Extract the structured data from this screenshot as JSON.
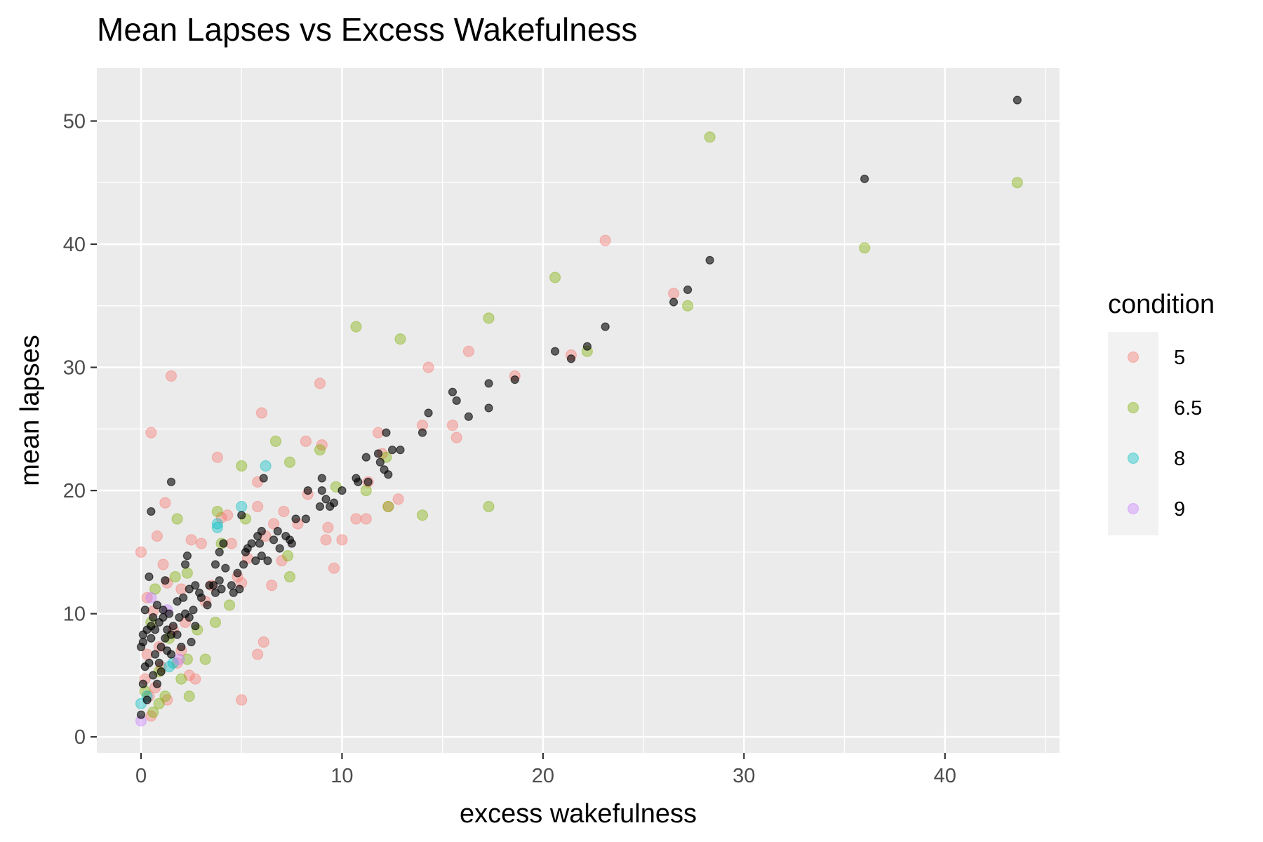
{
  "chart_data": {
    "type": "scatter",
    "title": "Mean Lapses vs Excess Wakefulness",
    "xlabel": "excess wakefulness",
    "ylabel": "mean lapses",
    "xlim": [
      -2.2,
      45.7
    ],
    "ylim": [
      -1.3,
      54.3
    ],
    "x_ticks": [
      0,
      10,
      20,
      30,
      40
    ],
    "y_ticks": [
      0,
      10,
      20,
      30,
      40,
      50
    ],
    "x_tick_labels": [
      "0",
      "10",
      "20",
      "30",
      "40"
    ],
    "y_tick_labels": [
      "0",
      "10",
      "20",
      "30",
      "40",
      "50"
    ],
    "grid": true,
    "legend": {
      "title": "condition",
      "position": "right",
      "entries": [
        {
          "label": "5",
          "color": "#F8766D"
        },
        {
          "label": "6.5",
          "color": "#7CAE00"
        },
        {
          "label": "8",
          "color": "#00BFC4"
        },
        {
          "label": "9",
          "color": "#C77CFF"
        }
      ]
    },
    "series": [
      {
        "name": "5",
        "color": "#F8766D",
        "points": [
          [
            0,
            15.0
          ],
          [
            0.5,
            24.7
          ],
          [
            0.8,
            16.3
          ],
          [
            1.2,
            19.0
          ],
          [
            1.5,
            29.3
          ],
          [
            1.1,
            14.0
          ],
          [
            0.3,
            11.3
          ],
          [
            0.6,
            10.2
          ],
          [
            1.3,
            12.5
          ],
          [
            2.0,
            12.0
          ],
          [
            2.5,
            16.0
          ],
          [
            3.0,
            15.7
          ],
          [
            3.5,
            12.3
          ],
          [
            3.8,
            22.7
          ],
          [
            4.0,
            17.8
          ],
          [
            4.3,
            18.0
          ],
          [
            4.5,
            15.7
          ],
          [
            4.8,
            13.0
          ],
          [
            5.0,
            12.5
          ],
          [
            5.3,
            14.5
          ],
          [
            5.8,
            20.7
          ],
          [
            6.0,
            26.3
          ],
          [
            5.8,
            18.7
          ],
          [
            6.2,
            16.3
          ],
          [
            6.5,
            12.3
          ],
          [
            6.6,
            17.3
          ],
          [
            7.0,
            14.3
          ],
          [
            7.1,
            18.3
          ],
          [
            7.8,
            17.3
          ],
          [
            8.2,
            24.0
          ],
          [
            8.3,
            19.7
          ],
          [
            8.9,
            28.7
          ],
          [
            9.0,
            23.7
          ],
          [
            9.2,
            16.0
          ],
          [
            9.3,
            17.0
          ],
          [
            9.6,
            13.7
          ],
          [
            10.0,
            16.0
          ],
          [
            10.7,
            17.7
          ],
          [
            11.2,
            17.7
          ],
          [
            11.3,
            20.7
          ],
          [
            11.8,
            24.7
          ],
          [
            12.0,
            23.0
          ],
          [
            12.3,
            18.7
          ],
          [
            12.8,
            19.3
          ],
          [
            14.0,
            25.3
          ],
          [
            14.3,
            30.0
          ],
          [
            15.5,
            25.3
          ],
          [
            15.7,
            24.3
          ],
          [
            16.3,
            31.3
          ],
          [
            18.6,
            29.3
          ],
          [
            21.4,
            31.0
          ],
          [
            23.1,
            40.3
          ],
          [
            26.5,
            36.0
          ],
          [
            0.2,
            4.7
          ],
          [
            0.4,
            3.3
          ],
          [
            0.7,
            4.0
          ],
          [
            1.0,
            5.7
          ],
          [
            1.3,
            3.0
          ],
          [
            2.0,
            7.0
          ],
          [
            2.4,
            5.0
          ],
          [
            2.7,
            4.7
          ],
          [
            5.0,
            3.0
          ],
          [
            5.8,
            6.7
          ],
          [
            6.1,
            7.7
          ],
          [
            0.3,
            6.7
          ],
          [
            0.9,
            7.3
          ],
          [
            1.6,
            8.7
          ],
          [
            2.2,
            9.3
          ],
          [
            3.2,
            11.0
          ],
          [
            0.5,
            1.7
          ],
          [
            1.8,
            6.0
          ]
        ]
      },
      {
        "name": "6.5",
        "color": "#7CAE00",
        "points": [
          [
            0.2,
            3.7
          ],
          [
            0.6,
            2.0
          ],
          [
            0.9,
            2.7
          ],
          [
            1.2,
            3.3
          ],
          [
            2.4,
            3.3
          ],
          [
            2.0,
            4.7
          ],
          [
            2.3,
            6.3
          ],
          [
            3.2,
            6.3
          ],
          [
            0.5,
            9.3
          ],
          [
            0.7,
            12.0
          ],
          [
            1.7,
            13.0
          ],
          [
            1.8,
            17.7
          ],
          [
            2.3,
            13.3
          ],
          [
            2.8,
            8.7
          ],
          [
            3.7,
            9.3
          ],
          [
            3.8,
            18.3
          ],
          [
            4.0,
            15.7
          ],
          [
            4.4,
            10.7
          ],
          [
            5.0,
            22.0
          ],
          [
            5.2,
            17.7
          ],
          [
            6.7,
            24.0
          ],
          [
            7.3,
            14.7
          ],
          [
            7.4,
            22.3
          ],
          [
            7.4,
            13.0
          ],
          [
            8.9,
            23.3
          ],
          [
            9.7,
            20.3
          ],
          [
            10.7,
            33.3
          ],
          [
            11.2,
            20.0
          ],
          [
            12.2,
            22.7
          ],
          [
            12.3,
            18.7
          ],
          [
            12.9,
            32.3
          ],
          [
            14.0,
            18.0
          ],
          [
            17.3,
            34.0
          ],
          [
            17.3,
            18.7
          ],
          [
            20.6,
            37.3
          ],
          [
            22.2,
            31.3
          ],
          [
            27.2,
            35.0
          ],
          [
            28.3,
            48.7
          ],
          [
            36.0,
            39.7
          ],
          [
            43.6,
            45.0
          ],
          [
            1.4,
            8.0
          ],
          [
            0.9,
            5.3
          ]
        ]
      },
      {
        "name": "8",
        "color": "#00BFC4",
        "points": [
          [
            0,
            2.7
          ],
          [
            0.3,
            3.3
          ],
          [
            1.4,
            5.7
          ],
          [
            1.6,
            6.0
          ],
          [
            3.8,
            17.0
          ],
          [
            3.8,
            17.3
          ],
          [
            5.0,
            18.7
          ],
          [
            6.2,
            22.0
          ]
        ]
      },
      {
        "name": "9",
        "color": "#C77CFF",
        "points": [
          [
            0,
            1.3
          ],
          [
            0.5,
            11.3
          ],
          [
            1.3,
            10.3
          ],
          [
            1.9,
            6.3
          ]
        ]
      },
      {
        "name": "",
        "color": "#000000",
        "points": [
          [
            0,
            1.8
          ],
          [
            0.3,
            3.0
          ],
          [
            0.1,
            4.3
          ],
          [
            0.6,
            5.0
          ],
          [
            0.4,
            6.0
          ],
          [
            0.7,
            6.7
          ],
          [
            0.9,
            6.0
          ],
          [
            1.0,
            7.3
          ],
          [
            1.2,
            8.0
          ],
          [
            1.5,
            8.3
          ],
          [
            0,
            7.3
          ],
          [
            0.1,
            7.7
          ],
          [
            0.1,
            8.3
          ],
          [
            0.3,
            8.7
          ],
          [
            0.5,
            8.0
          ],
          [
            0.7,
            8.7
          ],
          [
            0.9,
            9.3
          ],
          [
            1.1,
            9.7
          ],
          [
            1.3,
            8.7
          ],
          [
            1.6,
            9.0
          ],
          [
            1.9,
            9.7
          ],
          [
            2.2,
            10.0
          ],
          [
            2.4,
            9.7
          ],
          [
            2.7,
            9.0
          ],
          [
            0.2,
            10.3
          ],
          [
            0.5,
            9.0
          ],
          [
            0.8,
            10.7
          ],
          [
            1.1,
            10.3
          ],
          [
            1.4,
            10.0
          ],
          [
            1.8,
            11.0
          ],
          [
            2.1,
            11.3
          ],
          [
            2.4,
            12.0
          ],
          [
            2.7,
            12.3
          ],
          [
            3.0,
            11.3
          ],
          [
            3.3,
            10.7
          ],
          [
            3.6,
            12.3
          ],
          [
            3.9,
            12.7
          ],
          [
            4.2,
            13.7
          ],
          [
            4.5,
            12.3
          ],
          [
            4.8,
            13.3
          ],
          [
            0.4,
            13.0
          ],
          [
            1.2,
            12.7
          ],
          [
            2.2,
            14.0
          ],
          [
            2.3,
            14.7
          ],
          [
            3.7,
            14.0
          ],
          [
            3.9,
            15.0
          ],
          [
            4.1,
            15.7
          ],
          [
            5.2,
            15.0
          ],
          [
            5.5,
            15.7
          ],
          [
            5.8,
            16.3
          ],
          [
            6.0,
            16.7
          ],
          [
            6.3,
            14.3
          ],
          [
            6.6,
            16.0
          ],
          [
            6.8,
            16.7
          ],
          [
            7.2,
            16.3
          ],
          [
            7.4,
            16.0
          ],
          [
            7.7,
            17.7
          ],
          [
            8.2,
            17.7
          ],
          [
            8.9,
            18.7
          ],
          [
            9.2,
            19.3
          ],
          [
            9.4,
            18.7
          ],
          [
            9.6,
            19.0
          ],
          [
            10.0,
            20.0
          ],
          [
            10.7,
            21.0
          ],
          [
            11.2,
            22.7
          ],
          [
            11.8,
            23.0
          ],
          [
            12.2,
            24.7
          ],
          [
            12.5,
            23.3
          ],
          [
            12.9,
            23.3
          ],
          [
            14.0,
            24.7
          ],
          [
            14.3,
            26.3
          ],
          [
            15.5,
            28.0
          ],
          [
            15.7,
            27.3
          ],
          [
            16.3,
            26.0
          ],
          [
            17.3,
            26.7
          ],
          [
            17.3,
            28.7
          ],
          [
            18.6,
            29.0
          ],
          [
            20.6,
            31.3
          ],
          [
            21.4,
            30.7
          ],
          [
            22.2,
            31.7
          ],
          [
            23.1,
            33.3
          ],
          [
            26.5,
            35.3
          ],
          [
            27.2,
            36.3
          ],
          [
            28.3,
            38.7
          ],
          [
            36.0,
            45.3
          ],
          [
            43.6,
            51.7
          ],
          [
            0.5,
            18.3
          ],
          [
            1.5,
            20.7
          ],
          [
            6.1,
            21.0
          ],
          [
            5.0,
            18.0
          ],
          [
            9.0,
            21.0
          ],
          [
            10.8,
            20.7
          ],
          [
            11.3,
            20.7
          ],
          [
            12.1,
            21.7
          ],
          [
            12.3,
            21.3
          ],
          [
            11.9,
            22.3
          ],
          [
            8.3,
            20.0
          ],
          [
            9.0,
            20.0
          ],
          [
            0.2,
            5.7
          ],
          [
            0.8,
            4.3
          ],
          [
            1.0,
            5.3
          ],
          [
            1.5,
            6.7
          ],
          [
            2.0,
            7.3
          ],
          [
            2.5,
            7.7
          ],
          [
            1.3,
            7.0
          ],
          [
            1.8,
            8.3
          ],
          [
            0.6,
            9.7
          ],
          [
            2.6,
            10.3
          ],
          [
            2.9,
            11.7
          ],
          [
            3.4,
            12.3
          ],
          [
            3.7,
            11.7
          ],
          [
            4.0,
            12.0
          ],
          [
            4.6,
            11.7
          ],
          [
            4.9,
            12.0
          ],
          [
            5.1,
            14.0
          ],
          [
            5.3,
            15.3
          ],
          [
            5.7,
            14.3
          ],
          [
            6.0,
            14.7
          ],
          [
            6.9,
            15.3
          ],
          [
            7.5,
            15.7
          ],
          [
            5.9,
            15.7
          ]
        ]
      }
    ]
  }
}
